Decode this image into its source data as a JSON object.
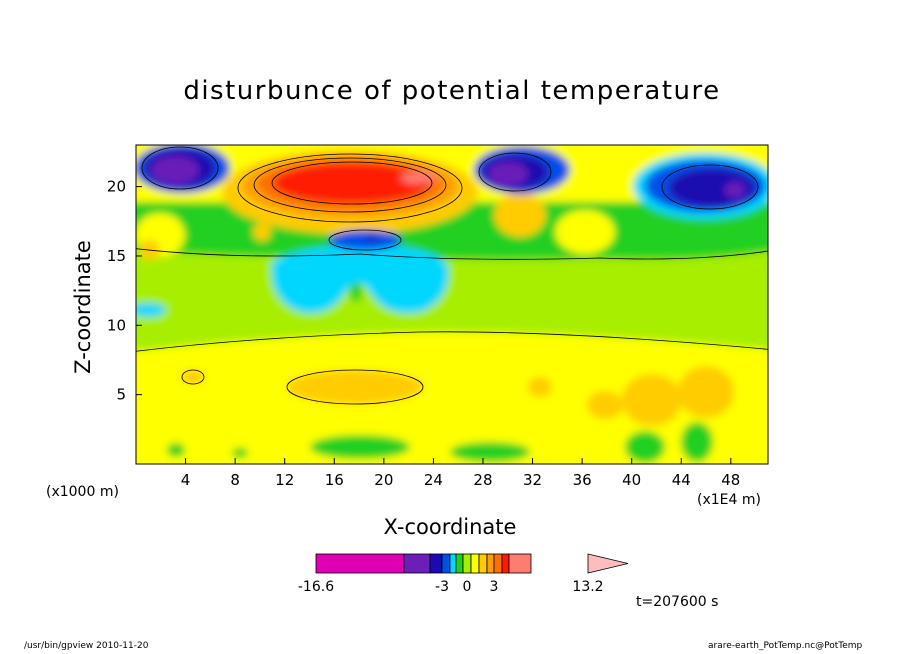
{
  "chart_data": {
    "type": "contour",
    "title": "disturbunce of potential temperature",
    "xlabel": "X-coordinate",
    "ylabel": "Z-coordinate",
    "x_unit_left": "(x1000 m)",
    "x_unit_right": "(x1E4 m)",
    "xlim": [
      0,
      51
    ],
    "ylim": [
      0,
      23
    ],
    "x_ticks": [
      4,
      8,
      12,
      16,
      20,
      24,
      28,
      32,
      36,
      40,
      44,
      48
    ],
    "y_ticks": [
      5,
      10,
      15,
      20
    ],
    "colorbar": {
      "levels": [
        -16.6,
        -15.0,
        -13.2,
        -11.5,
        -9.8,
        -8.0,
        -6.3,
        -4.5,
        -3,
        -2,
        -1,
        0,
        1,
        2,
        3,
        4,
        5,
        13.2
      ],
      "colors": [
        "#e000b4",
        "#6b1fb8",
        "#1a0ab0",
        "#0050e8",
        "#00d7ff",
        "#20d020",
        "#a8ee00",
        "#ffff00",
        "#ffcc00",
        "#ff9e00",
        "#ff6e00",
        "#ff1a00",
        "#ff7c70",
        "#ffbcbc"
      ],
      "tick_labels": [
        "-16.6",
        "-3",
        "0",
        "3",
        "13.2"
      ],
      "extend": "max"
    },
    "timestamp": "t=207600 s",
    "grid": false
  },
  "footer": {
    "left": "/usr/bin/gpview   2010-11-20",
    "right": "arare-earth_PotTemp.nc@PotTemp"
  }
}
